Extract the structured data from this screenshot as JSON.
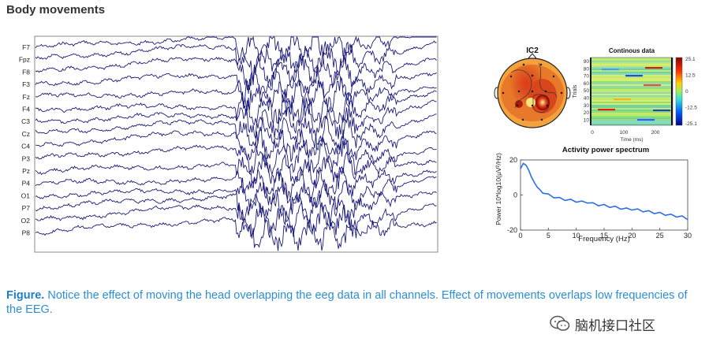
{
  "heading": "Body movements",
  "eeg": {
    "channels": [
      "F7",
      "Fpz",
      "F8",
      "F3",
      "Fz",
      "F4",
      "C3",
      "Cz",
      "C4",
      "P3",
      "Pz",
      "P4",
      "O1",
      "P7",
      "O2",
      "P8"
    ],
    "trace_color": "#1a1a7a"
  },
  "ic": {
    "title": "IC2"
  },
  "continuous": {
    "title": "Continous data",
    "ylabel": "Trials",
    "xlabel": "Time (ms)",
    "yticks": [
      "90",
      "80",
      "70",
      "60",
      "50",
      "40",
      "30",
      "20",
      "10"
    ],
    "xticks": [
      "0",
      "100",
      "200"
    ],
    "colorbar_ticks": [
      "25.1",
      "12.5",
      "0",
      "-12.5",
      "-25.1"
    ]
  },
  "chart_data": {
    "type": "line",
    "title": "Activity power spectrum",
    "xlabel": "Frequency (Hz)",
    "ylabel": "Power 10*log10(μV²/Hz)",
    "xlim": [
      0,
      30
    ],
    "ylim": [
      -20,
      20
    ],
    "xticks": [
      "0",
      "5",
      "10",
      "15",
      "20",
      "25",
      "30"
    ],
    "yticks": [
      "20",
      "0",
      "-20"
    ],
    "series": [
      {
        "name": "IC2",
        "x": [
          0,
          0.5,
          1,
          1.5,
          2,
          2.5,
          3,
          3.5,
          4,
          5,
          6,
          7,
          8,
          9,
          10,
          11,
          12,
          13,
          14,
          15,
          16,
          17,
          18,
          19,
          20,
          21,
          22,
          23,
          24,
          25,
          26,
          27,
          28,
          29,
          30
        ],
        "values": [
          15,
          18,
          17,
          14,
          10,
          7,
          4.5,
          3,
          1,
          0,
          -1,
          -2,
          -2.5,
          -3,
          -3.5,
          -4,
          -4,
          -5,
          -5.5,
          -6,
          -6.5,
          -7,
          -7.5,
          -8,
          -8,
          -8.5,
          -9,
          -9.5,
          -10,
          -10.5,
          -11,
          -11.5,
          -12,
          -12.5,
          -13.5
        ]
      }
    ]
  },
  "caption": {
    "label": "Figure.",
    "text": " Notice the effect of moving the head overlapping the eeg data in all channels. Effect of movements overlaps low frequencies of the EEG."
  },
  "watermark": {
    "text": "脑机接口社区",
    "icon": "wechat-icon"
  }
}
